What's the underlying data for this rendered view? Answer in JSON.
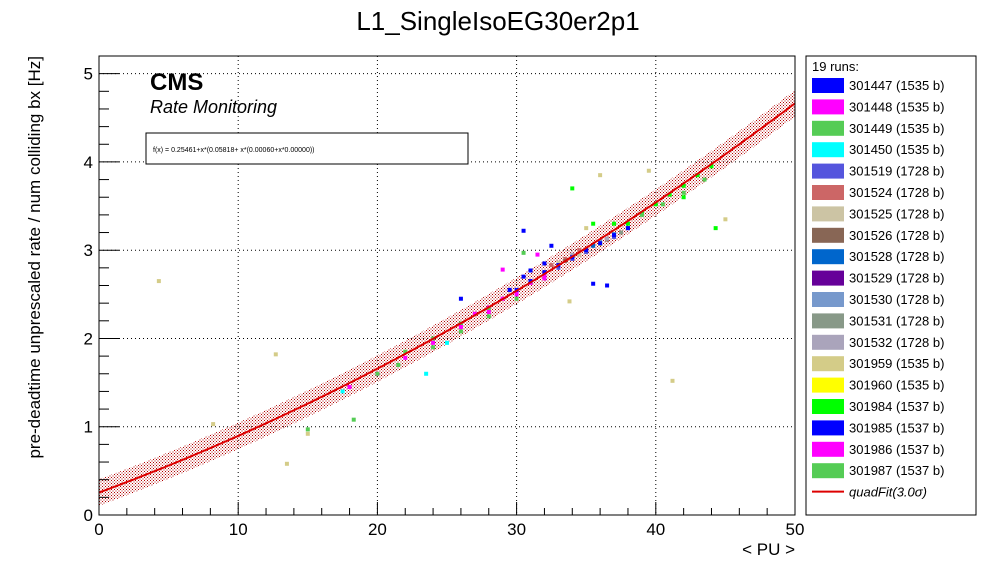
{
  "chart_data": {
    "type": "scatter",
    "title": "L1_SingleIsoEG30er2p1",
    "xlabel": "< PU >",
    "ylabel": "pre-deadtime unprescaled rate / num colliding bx [Hz]",
    "xlim": [
      0,
      50
    ],
    "ylim": [
      0,
      5.2
    ],
    "x_ticks": [
      0,
      10,
      20,
      30,
      40,
      50
    ],
    "y_ticks": [
      0,
      1,
      2,
      3,
      4,
      5
    ],
    "grid": true,
    "legend_placement": "right",
    "cms_label": "CMS",
    "cms_sublabel": "Rate Monitoring",
    "fit_formula": "f(x) = 0.25461+x*(0.05818+ x*(0.00060+x*0.00000))",
    "fit": {
      "name": "quadFit(3.0σ)",
      "legend_label": "quadFit(3.0σ)",
      "color": "#dd0000",
      "coefficients": [
        0.25461,
        0.05818,
        0.0006
      ],
      "band_half_width": 0.15,
      "x_range": [
        0,
        50
      ]
    },
    "legend_header": "19 runs:",
    "series": [
      {
        "name": "301447 (1535 b)",
        "color": "#0000ff",
        "x": [
          26.0,
          29.5,
          30.5,
          31.0,
          32.0
        ],
        "y": [
          2.45,
          2.55,
          2.7,
          2.77,
          2.85
        ]
      },
      {
        "name": "301448 (1535 b)",
        "color": "#ff00ff",
        "x": [
          27.0,
          28.0,
          29.0,
          30.0,
          31.0,
          32.0
        ],
        "y": [
          2.28,
          2.35,
          2.45,
          2.53,
          2.63,
          2.72
        ]
      },
      {
        "name": "301449 (1535 b)",
        "color": "#55cc55",
        "x": [
          22.0,
          24.0,
          26.0,
          28.0
        ],
        "y": [
          1.85,
          2.0,
          2.17,
          2.33
        ]
      },
      {
        "name": "301450 (1535 b)",
        "color": "#00ffff",
        "x": [
          23.5,
          25.0,
          17.5
        ],
        "y": [
          1.6,
          1.95,
          1.4
        ]
      },
      {
        "name": "301519 (1728 b)",
        "color": "#5555dd",
        "x": [
          33.0,
          34.0,
          35.0,
          36.0,
          37.0,
          38.0
        ],
        "y": [
          2.8,
          2.9,
          2.98,
          3.08,
          3.15,
          3.25
        ]
      },
      {
        "name": "301524 (1728 b)",
        "color": "#cc6666",
        "x": [
          32.5,
          33.5,
          34.5
        ],
        "y": [
          2.83,
          2.9,
          3.0
        ]
      },
      {
        "name": "301525 (1728 b)",
        "color": "#ccc4a4",
        "x": [
          33.0,
          34.5,
          36.0
        ],
        "y": [
          2.86,
          2.95,
          3.1
        ]
      },
      {
        "name": "301526 (1728 b)",
        "color": "#886655",
        "x": [
          33.5,
          35.0,
          36.5
        ],
        "y": [
          2.88,
          3.0,
          3.12
        ]
      },
      {
        "name": "301528 (1728 b)",
        "color": "#0066cc",
        "x": [
          34.0,
          35.5,
          37.0
        ],
        "y": [
          2.93,
          3.05,
          3.18
        ]
      },
      {
        "name": "301529 (1728 b)",
        "color": "#660099",
        "x": [
          32.0,
          33.0
        ],
        "y": [
          2.75,
          2.83
        ]
      },
      {
        "name": "301530 (1728 b)",
        "color": "#7799cc",
        "x": [
          35.0,
          36.0
        ],
        "y": [
          3.0,
          3.1
        ]
      },
      {
        "name": "301531 (1728 b)",
        "color": "#889988",
        "x": [
          36.0,
          37.5
        ],
        "y": [
          3.07,
          3.2
        ]
      },
      {
        "name": "301532 (1728 b)",
        "color": "#aaa4bb",
        "x": [
          34.0,
          36.5
        ],
        "y": [
          2.95,
          3.13
        ]
      },
      {
        "name": "301959 (1535 b)",
        "color": "#d4cc88",
        "x": [
          4.3,
          8.2,
          12.7,
          13.5,
          15.0,
          33.8,
          35.0,
          36.0,
          41.2,
          45.0,
          39.5
        ],
        "y": [
          2.65,
          1.03,
          1.82,
          0.58,
          0.92,
          2.42,
          3.25,
          3.85,
          1.52,
          3.35,
          3.9
        ]
      },
      {
        "name": "301960 (1535 b)",
        "color": "#ffff00",
        "x": [
          36.0
        ],
        "y": [
          3.08
        ]
      },
      {
        "name": "301984 (1537 b)",
        "color": "#00ff00",
        "x": [
          38.0,
          39.0,
          40.0,
          41.0,
          42.0,
          43.0,
          44.0,
          34.0,
          35.5,
          37.0,
          42.0,
          44.3
        ],
        "y": [
          3.3,
          3.42,
          3.52,
          3.63,
          3.73,
          3.85,
          3.95,
          3.7,
          3.3,
          3.3,
          3.6,
          3.25
        ]
      },
      {
        "name": "301985 (1537 b)",
        "color": "#0000ff",
        "x": [
          30.0,
          31.0,
          32.0,
          33.0,
          34.0,
          35.0,
          36.0,
          37.0,
          38.0,
          30.5,
          32.5,
          35.5,
          36.5
        ],
        "y": [
          2.55,
          2.65,
          2.75,
          2.83,
          2.92,
          3.0,
          3.08,
          3.17,
          3.25,
          3.22,
          3.05,
          2.62,
          2.6
        ]
      },
      {
        "name": "301986 (1537 b)",
        "color": "#ff00ff",
        "x": [
          18.0,
          20.0,
          22.0,
          24.0,
          26.0,
          28.0,
          30.0,
          32.0,
          29.0,
          31.5
        ],
        "y": [
          1.45,
          1.6,
          1.78,
          1.95,
          2.13,
          2.3,
          2.5,
          2.68,
          2.78,
          2.95
        ]
      },
      {
        "name": "301987 (1537 b)",
        "color": "#55cc55",
        "x": [
          15.0,
          18.3,
          20.0,
          21.5,
          24.0,
          26.0,
          28.0,
          30.0,
          39.0,
          40.5,
          42.0,
          43.5,
          30.5
        ],
        "y": [
          0.97,
          1.08,
          1.6,
          1.7,
          1.9,
          2.08,
          2.25,
          2.45,
          3.4,
          3.52,
          3.65,
          3.8,
          2.97
        ]
      }
    ]
  }
}
